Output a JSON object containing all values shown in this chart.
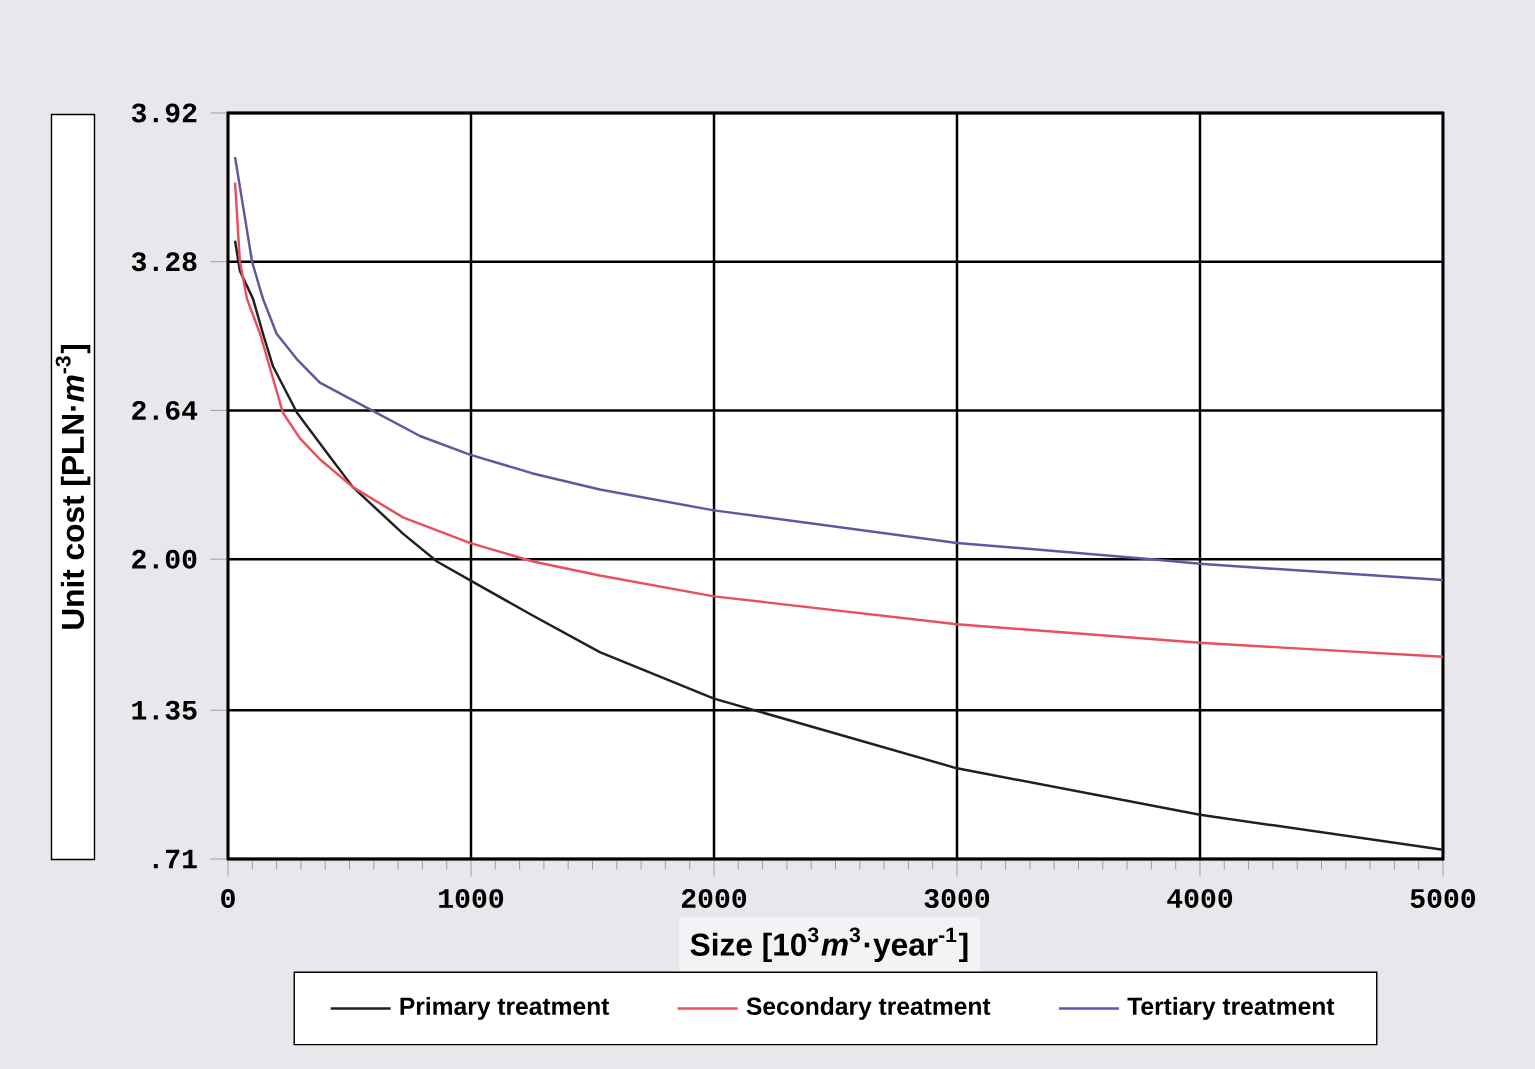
{
  "chart_data": {
    "type": "line",
    "xlabel": "Size [10$^{3}$*m*$^{3}$·year$^{-1}$]",
    "ylabel": "Unit cost [PLN·*m*$^{-3}$]",
    "xlim": [
      0,
      5000
    ],
    "ylim": [
      0.71,
      3.92
    ],
    "xticks": [
      0,
      1000,
      2000,
      3000,
      4000,
      5000
    ],
    "yticks": [
      {
        "value": 0.71,
        "label": ".71"
      },
      {
        "value": 1.35,
        "label": "1.35"
      },
      {
        "value": 2,
        "label": "2.00"
      },
      {
        "value": 2.64,
        "label": "2.64"
      },
      {
        "value": 3.28,
        "label": "3.28"
      },
      {
        "value": 3.92,
        "label": "3.92"
      }
    ],
    "grid": true,
    "legend": "bottom",
    "line_style": "solid",
    "series": [
      {
        "name": "Primary treatment",
        "color": "#202020",
        "x": [
          29,
          49,
          103,
          144,
          185,
          284,
          420,
          514,
          720,
          860,
          995,
          1250,
          1530,
          2000,
          3000,
          4000,
          5000
        ],
        "values": [
          3.37,
          3.24,
          3.12,
          2.97,
          2.83,
          2.63,
          2.44,
          2.31,
          2.11,
          1.99,
          1.91,
          1.76,
          1.6,
          1.4,
          1.1,
          0.9,
          0.75
        ]
      },
      {
        "name": "Secondary treatment",
        "color": "#e8505e",
        "x": [
          29,
          49,
          78,
          132,
          226,
          296,
          378,
          514,
          720,
          995,
          1255,
          1530,
          2000,
          3000,
          4000,
          5000
        ],
        "values": [
          3.62,
          3.28,
          3.12,
          2.97,
          2.63,
          2.52,
          2.43,
          2.31,
          2.18,
          2.07,
          1.99,
          1.93,
          1.84,
          1.72,
          1.64,
          1.58
        ]
      },
      {
        "name": "Tertiary treatment",
        "color": "#5a5aa0",
        "x": [
          29,
          99,
          144,
          200,
          284,
          378,
          592,
          790,
          995,
          1250,
          1530,
          2000,
          3000,
          3800,
          4000,
          5000
        ],
        "values": [
          3.73,
          3.28,
          3.12,
          2.97,
          2.86,
          2.76,
          2.64,
          2.53,
          2.45,
          2.37,
          2.3,
          2.21,
          2.07,
          2.0,
          1.98,
          1.91
        ]
      }
    ]
  }
}
